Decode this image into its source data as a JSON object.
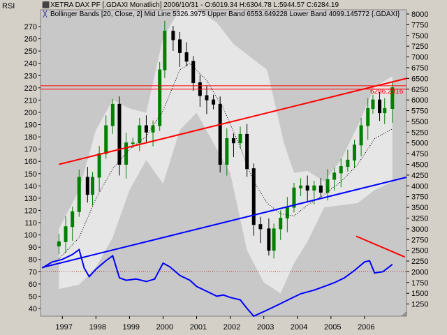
{
  "window": {
    "left_label": "RSI"
  },
  "legend": [
    {
      "icon": "price-series-icon",
      "icon_glyph": "⬛",
      "color": "#008000",
      "text": "XETRA DAX PF [.GDAXI  Monatlich] 2006/10/31 - O:6019.34 H:6304.78 L:5944.57 C:6284.19"
    },
    {
      "icon": "bollinger-icon",
      "icon_glyph": "╳",
      "color": "#000080",
      "text": "Bollinger Bands [20, Close, 2] Mid Line 5326.3975 Upper Band 6553.649228 Lower Band 4099.145772 {.GDAXI}"
    }
  ],
  "price_tag": "6286.2316",
  "colors": {
    "plot_bg": "#c8c8c8",
    "band_fill": "#e6e6e6",
    "candle_up": "#008000",
    "candle_down": "#000000",
    "trend_red": "#ff0000",
    "trend_blue": "#0000ff",
    "rsi_line": "#0000ff"
  },
  "chart_data": [
    {
      "type": "candlestick",
      "title": "XETRA DAX PF [.GDAXI Monatlich]",
      "x_axis": {
        "ticks": [
          "1997",
          "1998",
          "1999",
          "2000",
          "2001",
          "2002",
          "2003",
          "2004",
          "2005",
          "2006"
        ]
      },
      "y_axis": {
        "side": "right",
        "range": [
          1000,
          8000
        ],
        "ticks": [
          1250,
          1500,
          1750,
          2000,
          2250,
          2500,
          2750,
          3000,
          3250,
          3500,
          3750,
          4000,
          4250,
          4500,
          4750,
          5000,
          5250,
          5500,
          5750,
          6000,
          6250,
          6500,
          6750,
          7000,
          7250,
          7500,
          7750,
          8000
        ]
      },
      "last_bar": {
        "date": "2006/10/31",
        "open": 6019.34,
        "high": 6304.78,
        "low": 5944.57,
        "close": 6284.19
      },
      "monthly_close": [
        {
          "t": 1996.7,
          "v": 2600
        },
        {
          "t": 1996.9,
          "v": 2700
        },
        {
          "t": 1997.1,
          "v": 3050
        },
        {
          "t": 1997.3,
          "v": 3400
        },
        {
          "t": 1997.5,
          "v": 4200
        },
        {
          "t": 1997.75,
          "v": 3800
        },
        {
          "t": 1997.9,
          "v": 4200
        },
        {
          "t": 1998.1,
          "v": 4750
        },
        {
          "t": 1998.3,
          "v": 5400
        },
        {
          "t": 1998.5,
          "v": 5900
        },
        {
          "t": 1998.7,
          "v": 4500
        },
        {
          "t": 1998.9,
          "v": 5000
        },
        {
          "t": 1999.1,
          "v": 5000
        },
        {
          "t": 1999.3,
          "v": 5400
        },
        {
          "t": 1999.5,
          "v": 5250
        },
        {
          "t": 1999.7,
          "v": 5400
        },
        {
          "t": 1999.9,
          "v": 6700
        },
        {
          "t": 2000.05,
          "v": 7600
        },
        {
          "t": 2000.3,
          "v": 7400
        },
        {
          "t": 2000.5,
          "v": 7100
        },
        {
          "t": 2000.7,
          "v": 6900
        },
        {
          "t": 2000.9,
          "v": 6400
        },
        {
          "t": 2001.1,
          "v": 6100
        },
        {
          "t": 2001.3,
          "v": 6000
        },
        {
          "t": 2001.5,
          "v": 5900
        },
        {
          "t": 2001.7,
          "v": 4500
        },
        {
          "t": 2001.9,
          "v": 5100
        },
        {
          "t": 2002.1,
          "v": 5000
        },
        {
          "t": 2002.3,
          "v": 5200
        },
        {
          "t": 2002.5,
          "v": 4400
        },
        {
          "t": 2002.7,
          "v": 3100
        },
        {
          "t": 2002.9,
          "v": 3000
        },
        {
          "t": 2003.15,
          "v": 2500
        },
        {
          "t": 2003.3,
          "v": 3000
        },
        {
          "t": 2003.5,
          "v": 3250
        },
        {
          "t": 2003.7,
          "v": 3500
        },
        {
          "t": 2003.9,
          "v": 3950
        },
        {
          "t": 2004.1,
          "v": 4000
        },
        {
          "t": 2004.3,
          "v": 3900
        },
        {
          "t": 2004.5,
          "v": 4000
        },
        {
          "t": 2004.7,
          "v": 3850
        },
        {
          "t": 2004.9,
          "v": 4150
        },
        {
          "t": 2005.1,
          "v": 4300
        },
        {
          "t": 2005.3,
          "v": 4450
        },
        {
          "t": 2005.5,
          "v": 4600
        },
        {
          "t": 2005.7,
          "v": 4950
        },
        {
          "t": 2005.9,
          "v": 5400
        },
        {
          "t": 2006.1,
          "v": 5800
        },
        {
          "t": 2006.25,
          "v": 6000
        },
        {
          "t": 2006.45,
          "v": 5700
        },
        {
          "t": 2006.6,
          "v": 5800
        },
        {
          "t": 2006.83,
          "v": 6284
        }
      ],
      "bollinger": {
        "mid": [
          {
            "t": 1996.9,
            "v": 2300
          },
          {
            "t": 1997.5,
            "v": 2800
          },
          {
            "t": 1998.0,
            "v": 3700
          },
          {
            "t": 1998.5,
            "v": 4400
          },
          {
            "t": 1999.0,
            "v": 4850
          },
          {
            "t": 1999.5,
            "v": 5150
          },
          {
            "t": 2000.0,
            "v": 5750
          },
          {
            "t": 2000.5,
            "v": 6700
          },
          {
            "t": 2000.8,
            "v": 6850
          },
          {
            "t": 2001.3,
            "v": 6450
          },
          {
            "t": 2001.8,
            "v": 5800
          },
          {
            "t": 2002.3,
            "v": 4900
          },
          {
            "t": 2002.7,
            "v": 4100
          },
          {
            "t": 2003.1,
            "v": 3600
          },
          {
            "t": 2003.5,
            "v": 3350
          },
          {
            "t": 2003.9,
            "v": 3300
          },
          {
            "t": 2004.3,
            "v": 3550
          },
          {
            "t": 2004.8,
            "v": 3800
          },
          {
            "t": 2005.3,
            "v": 4100
          },
          {
            "t": 2005.8,
            "v": 4500
          },
          {
            "t": 2006.3,
            "v": 5100
          },
          {
            "t": 2006.83,
            "v": 5326
          }
        ],
        "upper": [
          {
            "t": 1996.9,
            "v": 3000
          },
          {
            "t": 1997.5,
            "v": 3900
          },
          {
            "t": 1998.0,
            "v": 5300
          },
          {
            "t": 1998.5,
            "v": 6000
          },
          {
            "t": 1999.0,
            "v": 5800
          },
          {
            "t": 1999.5,
            "v": 5700
          },
          {
            "t": 2000.0,
            "v": 7450
          },
          {
            "t": 2000.5,
            "v": 8100
          },
          {
            "t": 2001.0,
            "v": 8100
          },
          {
            "t": 2001.6,
            "v": 7800
          },
          {
            "t": 2002.1,
            "v": 7300
          },
          {
            "t": 2002.6,
            "v": 7000
          },
          {
            "t": 2003.1,
            "v": 6700
          },
          {
            "t": 2003.6,
            "v": 5000
          },
          {
            "t": 2003.9,
            "v": 4300
          },
          {
            "t": 2004.3,
            "v": 4350
          },
          {
            "t": 2004.8,
            "v": 4100
          },
          {
            "t": 2005.3,
            "v": 4600
          },
          {
            "t": 2005.8,
            "v": 5400
          },
          {
            "t": 2006.3,
            "v": 6300
          },
          {
            "t": 2006.83,
            "v": 6554
          }
        ],
        "lower": [
          {
            "t": 1996.9,
            "v": 1600
          },
          {
            "t": 1997.5,
            "v": 1700
          },
          {
            "t": 1998.0,
            "v": 2100
          },
          {
            "t": 1998.5,
            "v": 2800
          },
          {
            "t": 1999.0,
            "v": 3900
          },
          {
            "t": 1999.5,
            "v": 4600
          },
          {
            "t": 2000.0,
            "v": 4050
          },
          {
            "t": 2000.5,
            "v": 5300
          },
          {
            "t": 2001.0,
            "v": 5700
          },
          {
            "t": 2001.5,
            "v": 5000
          },
          {
            "t": 2002.0,
            "v": 4300
          },
          {
            "t": 2002.5,
            "v": 2500
          },
          {
            "t": 2003.0,
            "v": 1750
          },
          {
            "t": 2003.5,
            "v": 1500
          },
          {
            "t": 2003.9,
            "v": 2200
          },
          {
            "t": 2004.3,
            "v": 2700
          },
          {
            "t": 2004.8,
            "v": 3500
          },
          {
            "t": 2005.3,
            "v": 3550
          },
          {
            "t": 2005.8,
            "v": 3600
          },
          {
            "t": 2006.3,
            "v": 3900
          },
          {
            "t": 2006.83,
            "v": 4099
          }
        ]
      },
      "horizontal_lines": [
        6330,
        6250
      ],
      "trendlines": [
        {
          "color": "red",
          "from": {
            "t": 1996.9,
            "v": 4500
          },
          "to": {
            "t": 2007.25,
            "v": 6500
          }
        },
        {
          "color": "blue",
          "from": {
            "t": 1996.4,
            "v": 2100
          },
          "to": {
            "t": 2007.25,
            "v": 4200
          }
        }
      ]
    },
    {
      "type": "line",
      "title": "RSI",
      "y_axis": {
        "side": "left",
        "range": [
          35,
          277
        ],
        "ticks": [
          40,
          50,
          60,
          70,
          80,
          90,
          100,
          110,
          120,
          130,
          140,
          150,
          160,
          170,
          180,
          190,
          200,
          210,
          220,
          230,
          240,
          250,
          260,
          270
        ]
      },
      "reference_line": 70,
      "values": [
        {
          "t": 1996.4,
          "v": 73
        },
        {
          "t": 1996.7,
          "v": 78
        },
        {
          "t": 1997.0,
          "v": 80
        },
        {
          "t": 1997.3,
          "v": 84
        },
        {
          "t": 1997.5,
          "v": 88
        },
        {
          "t": 1997.65,
          "v": 73
        },
        {
          "t": 1997.8,
          "v": 66
        },
        {
          "t": 1998.0,
          "v": 72
        },
        {
          "t": 1998.3,
          "v": 79
        },
        {
          "t": 1998.5,
          "v": 83
        },
        {
          "t": 1998.7,
          "v": 65
        },
        {
          "t": 1998.9,
          "v": 63
        },
        {
          "t": 1999.2,
          "v": 64
        },
        {
          "t": 1999.5,
          "v": 62
        },
        {
          "t": 1999.75,
          "v": 64
        },
        {
          "t": 2000.0,
          "v": 77
        },
        {
          "t": 2000.2,
          "v": 74
        },
        {
          "t": 2000.5,
          "v": 67
        },
        {
          "t": 2000.8,
          "v": 63
        },
        {
          "t": 2001.0,
          "v": 58
        },
        {
          "t": 2001.3,
          "v": 54
        },
        {
          "t": 2001.6,
          "v": 50
        },
        {
          "t": 2001.8,
          "v": 51
        },
        {
          "t": 2002.0,
          "v": 49
        },
        {
          "t": 2002.3,
          "v": 47
        },
        {
          "t": 2002.5,
          "v": 40
        },
        {
          "t": 2002.7,
          "v": 33
        },
        {
          "t": 2003.2,
          "v": 40
        },
        {
          "t": 2003.5,
          "v": 44
        },
        {
          "t": 2003.8,
          "v": 48
        },
        {
          "t": 2004.1,
          "v": 52
        },
        {
          "t": 2004.5,
          "v": 55
        },
        {
          "t": 2004.8,
          "v": 58
        },
        {
          "t": 2005.1,
          "v": 61
        },
        {
          "t": 2005.4,
          "v": 65
        },
        {
          "t": 2005.7,
          "v": 71
        },
        {
          "t": 2006.0,
          "v": 78
        },
        {
          "t": 2006.15,
          "v": 79
        },
        {
          "t": 2006.3,
          "v": 69
        },
        {
          "t": 2006.55,
          "v": 70
        },
        {
          "t": 2006.83,
          "v": 76
        }
      ],
      "trendline": {
        "color": "red",
        "from": {
          "t": 2005.75,
          "v": 99
        },
        "to": {
          "t": 2007.2,
          "v": 82
        }
      }
    }
  ]
}
